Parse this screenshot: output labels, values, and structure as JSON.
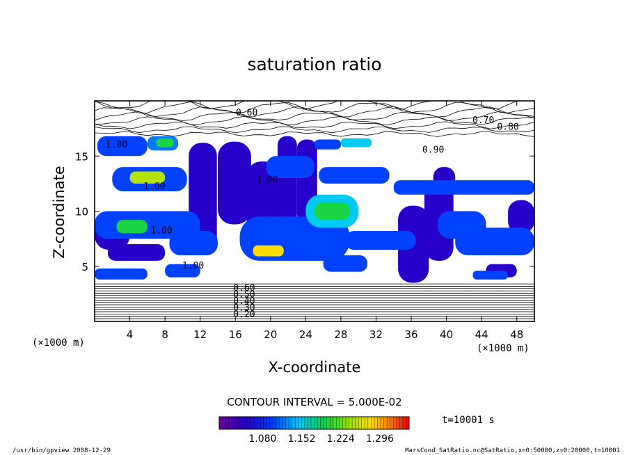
{
  "chart_data": {
    "type": "heatmap",
    "title": "saturation ratio",
    "xlabel": "X-coordinate",
    "ylabel": "Z-coordinate",
    "x_unit_left": "(×1000 m)",
    "x_unit_right": "(×1000 m)",
    "xlim": [
      0,
      50
    ],
    "ylim": [
      0,
      20
    ],
    "x_ticks": [
      4,
      8,
      12,
      16,
      20,
      24,
      28,
      32,
      36,
      40,
      44,
      48
    ],
    "y_ticks": [
      5,
      10,
      15
    ],
    "contour_interval_text": "CONTOUR INTERVAL = 5.000E-02",
    "time_text": "t=10001 s",
    "colorbar_ticks": [
      "1.080",
      "1.152",
      "1.224",
      "1.296"
    ],
    "colorbar_range": [
      1.0,
      1.35
    ],
    "contour_labels": [
      {
        "x": 17.3,
        "z": 19.0,
        "text": "0.60"
      },
      {
        "x": 44.2,
        "z": 18.3,
        "text": "0.70"
      },
      {
        "x": 47.0,
        "z": 17.7,
        "text": "0.80"
      },
      {
        "x": 38.5,
        "z": 15.6,
        "text": "0.90"
      },
      {
        "x": 2.5,
        "z": 16.1,
        "text": "1.00"
      },
      {
        "x": 6.8,
        "z": 12.3,
        "text": "1.00"
      },
      {
        "x": 19.6,
        "z": 12.9,
        "text": "1.00"
      },
      {
        "x": 7.6,
        "z": 8.3,
        "text": "1.00"
      },
      {
        "x": 11.2,
        "z": 5.1,
        "text": "1.00"
      },
      {
        "x": 17.0,
        "z": 3.1,
        "text": "0.60"
      },
      {
        "x": 17.0,
        "z": 2.5,
        "text": "0.50"
      },
      {
        "x": 17.0,
        "z": 1.9,
        "text": "0.40"
      },
      {
        "x": 17.0,
        "z": 1.3,
        "text": "0.30"
      },
      {
        "x": 17.0,
        "z": 0.7,
        "text": "0.20"
      }
    ],
    "supersaturated_regions": [
      {
        "level": 1.05,
        "x0": 10.7,
        "x1": 13.9,
        "z0": 6.2,
        "z1": 16.2
      },
      {
        "level": 1.05,
        "x0": 14.0,
        "x1": 17.8,
        "z0": 8.8,
        "z1": 16.3
      },
      {
        "level": 1.05,
        "x0": 17.3,
        "x1": 20.9,
        "z0": 7.0,
        "z1": 14.5
      },
      {
        "level": 1.05,
        "x0": 20.8,
        "x1": 23.0,
        "z0": 8.0,
        "z1": 16.8
      },
      {
        "level": 1.05,
        "x0": 23.0,
        "x1": 25.3,
        "z0": 9.0,
        "z1": 16.5
      },
      {
        "level": 1.05,
        "x0": 34.5,
        "x1": 38.0,
        "z0": 3.5,
        "z1": 10.5
      },
      {
        "level": 1.05,
        "x0": 37.5,
        "x1": 40.8,
        "z0": 5.5,
        "z1": 12.8
      },
      {
        "level": 1.05,
        "x0": 38.5,
        "x1": 41.0,
        "z0": 12.0,
        "z1": 14.0
      },
      {
        "level": 1.05,
        "x0": 0.0,
        "x1": 4.0,
        "z0": 6.5,
        "z1": 9.3
      },
      {
        "level": 1.05,
        "x0": 1.5,
        "x1": 8.0,
        "z0": 5.5,
        "z1": 7.0
      },
      {
        "level": 1.05,
        "x0": 47.0,
        "x1": 50.0,
        "z0": 8.0,
        "z1": 11.0
      },
      {
        "level": 1.05,
        "x0": 44.5,
        "x1": 48.0,
        "z0": 4.0,
        "z1": 5.2
      },
      {
        "level": 1.1,
        "x0": 0.3,
        "x1": 6.0,
        "z0": 15.0,
        "z1": 16.8
      },
      {
        "level": 1.12,
        "x0": 6.0,
        "x1": 9.5,
        "z0": 15.5,
        "z1": 16.8
      },
      {
        "level": 1.1,
        "x0": 2.0,
        "x1": 10.5,
        "z0": 11.8,
        "z1": 14.0
      },
      {
        "level": 1.1,
        "x0": 0.0,
        "x1": 12.0,
        "z0": 7.5,
        "z1": 10.0
      },
      {
        "level": 1.1,
        "x0": 8.5,
        "x1": 14.0,
        "z0": 6.0,
        "z1": 8.2
      },
      {
        "level": 1.1,
        "x0": 16.5,
        "x1": 29.0,
        "z0": 5.5,
        "z1": 9.5
      },
      {
        "level": 1.15,
        "x0": 24.0,
        "x1": 30.0,
        "z0": 8.5,
        "z1": 11.5
      },
      {
        "level": 1.1,
        "x0": 25.5,
        "x1": 33.5,
        "z0": 12.5,
        "z1": 14.0
      },
      {
        "level": 1.1,
        "x0": 28.5,
        "x1": 36.5,
        "z0": 6.5,
        "z1": 8.2
      },
      {
        "level": 1.1,
        "x0": 34.0,
        "x1": 50.0,
        "z0": 11.5,
        "z1": 12.8
      },
      {
        "level": 1.1,
        "x0": 39.0,
        "x1": 44.5,
        "z0": 7.5,
        "z1": 10.0
      },
      {
        "level": 1.1,
        "x0": 41.0,
        "x1": 50.0,
        "z0": 6.0,
        "z1": 8.5
      },
      {
        "level": 1.1,
        "x0": 0.0,
        "x1": 6.0,
        "z0": 3.8,
        "z1": 4.8
      },
      {
        "level": 1.1,
        "x0": 8.0,
        "x1": 12.0,
        "z0": 4.0,
        "z1": 5.2
      },
      {
        "level": 1.1,
        "x0": 26.0,
        "x1": 31.0,
        "z0": 4.5,
        "z1": 6.0
      },
      {
        "level": 1.1,
        "x0": 43.0,
        "x1": 47.0,
        "z0": 3.8,
        "z1": 4.6
      },
      {
        "level": 1.1,
        "x0": 19.5,
        "x1": 25.0,
        "z0": 13.0,
        "z1": 15.0
      },
      {
        "level": 1.1,
        "x0": 25.0,
        "x1": 28.0,
        "z0": 15.6,
        "z1": 16.5
      },
      {
        "level": 1.15,
        "x0": 28.0,
        "x1": 31.5,
        "z0": 15.8,
        "z1": 16.6
      },
      {
        "level": 1.25,
        "x0": 4.0,
        "x1": 8.0,
        "z0": 12.5,
        "z1": 13.6
      },
      {
        "level": 1.2,
        "x0": 25.0,
        "x1": 29.0,
        "z0": 9.2,
        "z1": 10.8
      },
      {
        "level": 1.28,
        "x0": 18.0,
        "x1": 21.5,
        "z0": 5.9,
        "z1": 6.9
      },
      {
        "level": 1.2,
        "x0": 2.5,
        "x1": 6.0,
        "z0": 8.0,
        "z1": 9.2
      },
      {
        "level": 1.2,
        "x0": 7.0,
        "x1": 9.0,
        "z0": 15.8,
        "z1": 16.6
      }
    ]
  },
  "footer": {
    "left": "/usr/bin/gpview   2008-12-29",
    "right": "MarsCond_SatRatio.nc@SatRatio,x=0:50000,z=0:20000,t=10001"
  }
}
